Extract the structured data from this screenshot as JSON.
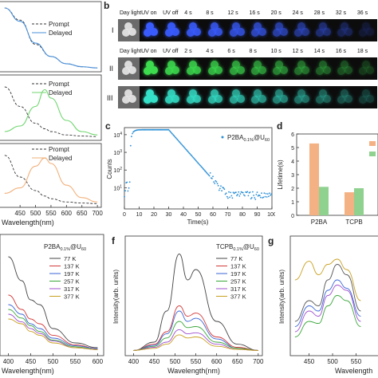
{
  "panels": {
    "b": {
      "letter": "b",
      "row1": {
        "label": "I",
        "times": [
          "Day light",
          "UV on",
          "UV off",
          "4 s",
          "8 s",
          "12 s",
          "16 s",
          "20 s",
          "24 s",
          "28 s",
          "32 s",
          "36 s"
        ],
        "intensity": [
          0,
          1,
          0.95,
          0.9,
          0.85,
          0.78,
          0.7,
          0.6,
          0.5,
          0.4,
          0.28,
          0.15
        ],
        "glow_color": "#3a5cff"
      },
      "row2": {
        "label": "II",
        "times": [
          "Day light",
          "UV on",
          "UV off",
          "2 s",
          "4 s",
          "6 s",
          "8 s",
          "10 s",
          "12 s",
          "14 s",
          "16 s",
          "18 s"
        ],
        "intensity": [
          0,
          1,
          0.9,
          0.85,
          0.78,
          0.7,
          0.62,
          0.54,
          0.46,
          0.38,
          0.3,
          0.2
        ],
        "glow_color": "#3ddc4f"
      },
      "row3": {
        "label": "III",
        "intensity": [
          0,
          1,
          0.9,
          0.85,
          0.78,
          0.7,
          0.62,
          0.54,
          0.46,
          0.38,
          0.3,
          0.2
        ],
        "glow_color": "#35e0c8"
      }
    },
    "a": {
      "legend": {
        "prompt": "Prompt",
        "delayed": "Delayed"
      },
      "xlabel": "Wavelength(nm)",
      "xticks": [
        "450",
        "500",
        "550",
        "600",
        "650",
        "700"
      ],
      "colors": {
        "delayed1": "#4a90d9",
        "delayed2": "#6fd66f",
        "delayed3": "#f2b07a",
        "prompt": "#333333"
      }
    },
    "c": {
      "letter": "c",
      "legend": "P2BA0.1%@U60",
      "legend_main": "P2BA",
      "legend_sub": "0.1%",
      "legend_tail": "@U",
      "legend_sub2": "60",
      "xlabel": "Time(s)",
      "ylabel": "Counts",
      "xticks": [
        "0",
        "10",
        "20",
        "30",
        "40",
        "50",
        "60",
        "70",
        "80",
        "90",
        "100"
      ],
      "yticks": [
        "10",
        "10",
        "10",
        "10"
      ],
      "yexp": [
        "1",
        "2",
        "3",
        "4"
      ],
      "color": "#2a8fd6"
    },
    "d": {
      "letter": "d",
      "ylabel": "Lifetime(s)",
      "categories": [
        "P2BA",
        "TCPB"
      ],
      "yticks": [
        "0",
        "1",
        "2",
        "3",
        "4",
        "5",
        "6"
      ],
      "colors": [
        "#f4b183",
        "#8fd18f"
      ]
    },
    "e": {
      "legend_main": "P2BA",
      "legend_sub": "0.1%",
      "legend_tail": "@U",
      "legend_sub2": "60",
      "temps": [
        "77 K",
        "137 K",
        "197 K",
        "257 K",
        "317 K",
        "377 K"
      ],
      "xlabel": "Wavelength(nm)",
      "xticks": [
        "400",
        "450",
        "500",
        "550",
        "600"
      ]
    },
    "f": {
      "letter": "f",
      "legend_main": "TCPB",
      "legend_sub": "0.1%",
      "legend_tail": "@U",
      "legend_sub2": "60",
      "temps": [
        "77 K",
        "137 K",
        "197 K",
        "257 K",
        "317 K",
        "377 K"
      ],
      "xlabel": "Wavelength(nm)",
      "ylabel": "Intensity(arb. units)",
      "xticks": [
        "400",
        "450",
        "500",
        "550",
        "600",
        "650",
        "700"
      ]
    },
    "g": {
      "letter": "g",
      "ylabel": "Intensity(arb. units)",
      "xlabel": "Wavelength",
      "xticks": [
        "450",
        "500",
        "550"
      ]
    },
    "temp_colors": [
      "#444444",
      "#d33a3a",
      "#3a66d6",
      "#3aa63a",
      "#a050d0",
      "#c8a020"
    ]
  },
  "chart_data": [
    {
      "type": "line",
      "panel": "a",
      "x": [
        400,
        450,
        500,
        550,
        600,
        650,
        700
      ],
      "series": [
        {
          "name": "Prompt",
          "values": [
            1.0,
            0.8,
            0.4,
            0.2,
            0.08,
            0.03,
            0.01
          ]
        },
        {
          "name": "Delayed",
          "values": [
            1.0,
            0.78,
            0.42,
            0.2,
            0.08,
            0.03,
            0.01
          ]
        }
      ]
    },
    {
      "type": "line",
      "panel": "a",
      "x": [
        400,
        450,
        500,
        530,
        550,
        600,
        650,
        700
      ],
      "series": [
        {
          "name": "Prompt",
          "values": [
            0.9,
            0.55,
            0.25,
            0.15,
            0.1,
            0.04,
            0.02,
            0.01
          ]
        },
        {
          "name": "Delayed",
          "values": [
            0.1,
            0.2,
            0.55,
            0.85,
            0.7,
            0.3,
            0.1,
            0.04
          ]
        }
      ]
    },
    {
      "type": "line",
      "panel": "a",
      "x": [
        400,
        450,
        500,
        530,
        550,
        600,
        650,
        700
      ],
      "series": [
        {
          "name": "Prompt",
          "values": [
            0.9,
            0.5,
            0.25,
            0.15,
            0.1,
            0.04,
            0.02,
            0.01
          ]
        },
        {
          "name": "Delayed",
          "values": [
            0.2,
            0.3,
            0.7,
            0.85,
            0.75,
            0.35,
            0.12,
            0.04
          ]
        }
      ]
    },
    {
      "type": "scatter",
      "panel": "c",
      "xlim": [
        0,
        100
      ],
      "ylabel": "Counts",
      "xlabel": "Time(s)",
      "log_y": true,
      "x": [
        5,
        10,
        15,
        20,
        25,
        30,
        40,
        50,
        60,
        70,
        80,
        90,
        100
      ],
      "values": [
        15000,
        18000,
        19000,
        19000,
        19000,
        19000,
        1500,
        150,
        30,
        8,
        5,
        4,
        4
      ]
    },
    {
      "type": "bar",
      "panel": "d",
      "categories": [
        "P2BA",
        "TCPB"
      ],
      "ylim": [
        0,
        6
      ],
      "ylabel": "Lifetime(s)",
      "series": [
        {
          "values": [
            5.3,
            1.7
          ]
        },
        {
          "values": [
            2.1,
            2.0
          ]
        }
      ]
    },
    {
      "type": "line",
      "panel": "e",
      "xlabel": "Wavelength(nm)",
      "x": [
        400,
        430,
        450,
        470,
        500,
        550,
        600
      ],
      "series": [
        {
          "name": "77 K",
          "values": [
            1.0,
            0.75,
            0.55,
            0.5,
            0.25,
            0.1,
            0.05
          ]
        },
        {
          "name": "137 K",
          "values": [
            0.6,
            0.45,
            0.35,
            0.3,
            0.18,
            0.08,
            0.04
          ]
        },
        {
          "name": "197 K",
          "values": [
            0.5,
            0.4,
            0.3,
            0.25,
            0.15,
            0.07,
            0.04
          ]
        },
        {
          "name": "257 K",
          "values": [
            0.45,
            0.36,
            0.28,
            0.22,
            0.13,
            0.06,
            0.03
          ]
        },
        {
          "name": "317 K",
          "values": [
            0.4,
            0.32,
            0.25,
            0.2,
            0.12,
            0.05,
            0.03
          ]
        },
        {
          "name": "377 K",
          "values": [
            0.35,
            0.3,
            0.22,
            0.18,
            0.1,
            0.05,
            0.03
          ]
        }
      ]
    },
    {
      "type": "line",
      "panel": "f",
      "xlabel": "Wavelength(nm)",
      "ylabel": "Intensity(arb. units)",
      "x": [
        400,
        450,
        480,
        510,
        530,
        550,
        600,
        650,
        700
      ],
      "series": [
        {
          "name": "77 K",
          "values": [
            0.02,
            0.1,
            0.4,
            0.95,
            0.7,
            0.8,
            0.3,
            0.08,
            0.02
          ]
        },
        {
          "name": "137 K",
          "values": [
            0.02,
            0.08,
            0.2,
            0.45,
            0.35,
            0.38,
            0.15,
            0.05,
            0.02
          ]
        },
        {
          "name": "197 K",
          "values": [
            0.02,
            0.07,
            0.18,
            0.4,
            0.3,
            0.33,
            0.13,
            0.04,
            0.02
          ]
        },
        {
          "name": "257 K",
          "values": [
            0.02,
            0.06,
            0.14,
            0.3,
            0.24,
            0.25,
            0.1,
            0.04,
            0.02
          ]
        },
        {
          "name": "317 K",
          "values": [
            0.02,
            0.05,
            0.1,
            0.22,
            0.18,
            0.19,
            0.08,
            0.03,
            0.02
          ]
        },
        {
          "name": "377 K",
          "values": [
            0.02,
            0.04,
            0.08,
            0.17,
            0.14,
            0.15,
            0.06,
            0.03,
            0.02
          ]
        }
      ]
    },
    {
      "type": "line",
      "panel": "g",
      "xlabel": "Wavelength",
      "ylabel": "Intensity(arb. units)",
      "x": [
        420,
        450,
        470,
        490,
        510,
        530,
        560
      ],
      "series": [
        {
          "values": [
            0.7,
            0.88,
            0.75,
            0.85,
            0.9,
            0.8,
            0.5
          ]
        },
        {
          "values": [
            0.3,
            0.5,
            0.45,
            0.7,
            0.85,
            0.75,
            0.4
          ]
        },
        {
          "values": [
            0.2,
            0.4,
            0.35,
            0.55,
            0.65,
            0.6,
            0.3
          ]
        },
        {
          "values": [
            0.25,
            0.45,
            0.4,
            0.6,
            0.7,
            0.62,
            0.35
          ]
        },
        {
          "values": [
            0.15,
            0.3,
            0.28,
            0.45,
            0.55,
            0.5,
            0.25
          ]
        }
      ]
    }
  ]
}
